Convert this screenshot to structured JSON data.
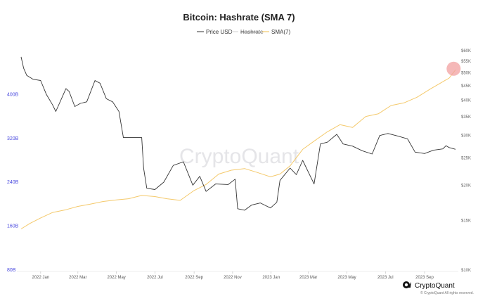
{
  "chart_data": {
    "type": "line",
    "title": "Bitcoin: Hashrate (SMA 7)",
    "legend": [
      {
        "name": "Price USD",
        "color": "#333333",
        "style": "solid"
      },
      {
        "name": "Hashrate",
        "color": "#cfcfcf",
        "style": "strikethrough (hidden)"
      },
      {
        "name": "SMA(7)",
        "color": "#f4c96b",
        "style": "solid"
      }
    ],
    "legend_position": "top-center",
    "grid": false,
    "x_range": [
      "2021-12-01",
      "2023-10-20"
    ],
    "x_ticks": [
      "2022 Jan",
      "2022 Mar",
      "2022 May",
      "2022 Jul",
      "2022 Sep",
      "2022 Nov",
      "2023 Jan",
      "2023 Mar",
      "2023 May",
      "2023 Jul",
      "2023 Sep"
    ],
    "x_tick_dates": [
      "2022-01-01",
      "2022-03-01",
      "2022-05-01",
      "2022-07-01",
      "2022-09-01",
      "2022-11-01",
      "2023-01-01",
      "2023-03-01",
      "2023-05-01",
      "2023-07-01",
      "2023-09-01"
    ],
    "y_left": {
      "scale": "linear",
      "range": [
        80,
        480
      ],
      "ticks": [
        "400B",
        "320B",
        "240B",
        "160B",
        "80B"
      ],
      "tick_values": [
        400,
        320,
        240,
        160,
        80
      ],
      "unit": "B"
    },
    "y_right": {
      "scale": "log",
      "range": [
        10000,
        60000
      ],
      "ticks": [
        "$60K",
        "$55K",
        "$50K",
        "$45K",
        "$40K",
        "$35K",
        "$30K",
        "$25K",
        "$20K",
        "$15K",
        "$10K"
      ],
      "tick_values": [
        60000,
        55000,
        50000,
        45000,
        40000,
        35000,
        30000,
        25000,
        20000,
        15000,
        10000
      ]
    },
    "series": [
      {
        "name": "Price USD",
        "axis": "right",
        "color": "#333333",
        "points": [
          [
            "2021-12-01",
            57000
          ],
          [
            "2021-12-05",
            52000
          ],
          [
            "2021-12-10",
            49000
          ],
          [
            "2021-12-20",
            47500
          ],
          [
            "2022-01-01",
            47000
          ],
          [
            "2022-01-10",
            42000
          ],
          [
            "2022-01-20",
            38500
          ],
          [
            "2022-01-25",
            36500
          ],
          [
            "2022-02-05",
            41500
          ],
          [
            "2022-02-10",
            44000
          ],
          [
            "2022-02-15",
            43000
          ],
          [
            "2022-02-24",
            38000
          ],
          [
            "2022-03-05",
            39000
          ],
          [
            "2022-03-15",
            39500
          ],
          [
            "2022-03-28",
            47000
          ],
          [
            "2022-04-05",
            46000
          ],
          [
            "2022-04-15",
            40500
          ],
          [
            "2022-04-25",
            39500
          ],
          [
            "2022-05-05",
            36500
          ],
          [
            "2022-05-12",
            29500
          ],
          [
            "2022-05-25",
            29500
          ],
          [
            "2022-06-10",
            29500
          ],
          [
            "2022-06-13",
            23000
          ],
          [
            "2022-06-18",
            19500
          ],
          [
            "2022-07-01",
            19300
          ],
          [
            "2022-07-15",
            20500
          ],
          [
            "2022-07-30",
            23500
          ],
          [
            "2022-08-15",
            24200
          ],
          [
            "2022-08-30",
            20000
          ],
          [
            "2022-09-10",
            21500
          ],
          [
            "2022-09-20",
            19000
          ],
          [
            "2022-10-05",
            20200
          ],
          [
            "2022-10-25",
            20100
          ],
          [
            "2022-11-05",
            21000
          ],
          [
            "2022-11-09",
            16500
          ],
          [
            "2022-11-20",
            16300
          ],
          [
            "2022-12-01",
            17000
          ],
          [
            "2022-12-15",
            17300
          ],
          [
            "2022-12-31",
            16600
          ],
          [
            "2023-01-10",
            17400
          ],
          [
            "2023-01-15",
            20800
          ],
          [
            "2023-01-31",
            23000
          ],
          [
            "2023-02-10",
            21800
          ],
          [
            "2023-02-20",
            24500
          ],
          [
            "2023-03-10",
            20200
          ],
          [
            "2023-03-20",
            28000
          ],
          [
            "2023-03-31",
            28400
          ],
          [
            "2023-04-15",
            30300
          ],
          [
            "2023-04-25",
            28000
          ],
          [
            "2023-05-10",
            27500
          ],
          [
            "2023-05-25",
            26500
          ],
          [
            "2023-06-10",
            25800
          ],
          [
            "2023-06-22",
            30000
          ],
          [
            "2023-07-05",
            30500
          ],
          [
            "2023-07-20",
            29900
          ],
          [
            "2023-08-05",
            29200
          ],
          [
            "2023-08-17",
            26200
          ],
          [
            "2023-09-01",
            25900
          ],
          [
            "2023-09-15",
            26600
          ],
          [
            "2023-09-30",
            26900
          ],
          [
            "2023-10-05",
            27600
          ],
          [
            "2023-10-10",
            27200
          ],
          [
            "2023-10-20",
            26800
          ]
        ]
      },
      {
        "name": "SMA(7)",
        "axis": "left",
        "color": "#f4c96b",
        "points": [
          [
            "2021-12-01",
            155
          ],
          [
            "2021-12-15",
            165
          ],
          [
            "2022-01-01",
            175
          ],
          [
            "2022-01-20",
            185
          ],
          [
            "2022-02-10",
            190
          ],
          [
            "2022-03-01",
            196
          ],
          [
            "2022-03-20",
            200
          ],
          [
            "2022-04-10",
            205
          ],
          [
            "2022-05-01",
            208
          ],
          [
            "2022-05-20",
            210
          ],
          [
            "2022-06-10",
            216
          ],
          [
            "2022-07-01",
            214
          ],
          [
            "2022-07-20",
            210
          ],
          [
            "2022-08-10",
            207
          ],
          [
            "2022-09-01",
            225
          ],
          [
            "2022-09-20",
            236
          ],
          [
            "2022-10-10",
            255
          ],
          [
            "2022-10-30",
            262
          ],
          [
            "2022-11-20",
            265
          ],
          [
            "2022-12-10",
            258
          ],
          [
            "2022-12-31",
            250
          ],
          [
            "2023-01-15",
            255
          ],
          [
            "2023-01-31",
            270
          ],
          [
            "2023-02-20",
            300
          ],
          [
            "2023-03-10",
            315
          ],
          [
            "2023-03-31",
            332
          ],
          [
            "2023-04-20",
            345
          ],
          [
            "2023-05-10",
            340
          ],
          [
            "2023-05-31",
            360
          ],
          [
            "2023-06-20",
            365
          ],
          [
            "2023-07-10",
            380
          ],
          [
            "2023-07-31",
            385
          ],
          [
            "2023-08-20",
            395
          ],
          [
            "2023-09-10",
            410
          ],
          [
            "2023-09-25",
            420
          ],
          [
            "2023-10-10",
            430
          ],
          [
            "2023-10-20",
            445
          ]
        ]
      }
    ],
    "annotations": [
      {
        "type": "highlight-circle",
        "series": "SMA(7)",
        "date": "2023-10-17",
        "value": 447,
        "color": "#f2a0a0"
      }
    ],
    "watermark": "CryptoQuant",
    "brand": "CryptoQuant",
    "copyright": "© CryptoQuant All rights reserved."
  }
}
